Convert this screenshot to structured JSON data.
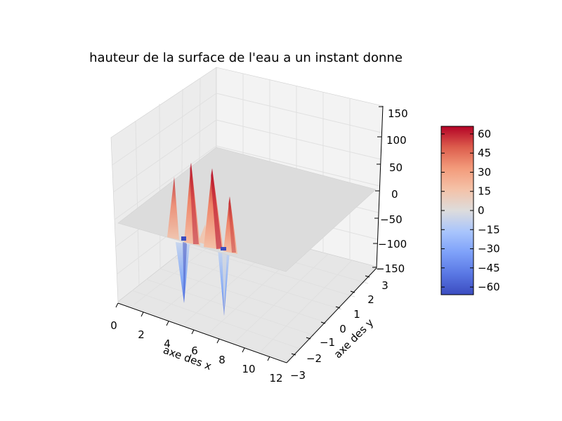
{
  "chart_data": {
    "type": "surface3d",
    "title": "hauteur de la surface de l'eau a un instant donne",
    "xlabel": "axe des x",
    "ylabel": "axe des y",
    "zlabel": "",
    "xlim": [
      0,
      12
    ],
    "ylim": [
      -3,
      3
    ],
    "zlim": [
      -150,
      150
    ],
    "x_ticks": [
      "0",
      "2",
      "4",
      "6",
      "8",
      "10",
      "12"
    ],
    "y_ticks": [
      "−3",
      "−2",
      "−1",
      "0",
      "1",
      "2",
      "3"
    ],
    "z_ticks": [
      "−150",
      "−100",
      "−50",
      "0",
      "50",
      "100",
      "150"
    ],
    "grid": true,
    "colormap": "coolwarm",
    "colorbar": {
      "range": [
        -66,
        66
      ],
      "ticks": [
        "60",
        "45",
        "30",
        "15",
        "0",
        "−15",
        "−30",
        "−45",
        "−60"
      ],
      "tick_values": [
        60,
        45,
        30,
        15,
        0,
        -15,
        -30,
        -45,
        -60
      ]
    },
    "features": [
      {
        "kind": "peak",
        "x": 2.3,
        "y": 0.1,
        "z": 55
      },
      {
        "kind": "peak",
        "x": 3.1,
        "y": -0.3,
        "z": 65
      },
      {
        "kind": "peak",
        "x": 4.9,
        "y": -0.2,
        "z": 60
      },
      {
        "kind": "peak",
        "x": 6.4,
        "y": -1.6,
        "z": 42
      },
      {
        "kind": "peak",
        "x": 2.6,
        "y": -0.4,
        "z": 25
      },
      {
        "kind": "trough",
        "x": 3.8,
        "y": -1.3,
        "z": -62
      },
      {
        "kind": "trough",
        "x": 7.6,
        "y": -1.1,
        "z": -66
      }
    ],
    "colors": {
      "surface_flat": "#dcdcdc",
      "pane": "#f2f2f2",
      "pane_dark": "#e9e9e9",
      "grid": "#e0e0e0",
      "colorbar_outline": "#000000"
    }
  }
}
